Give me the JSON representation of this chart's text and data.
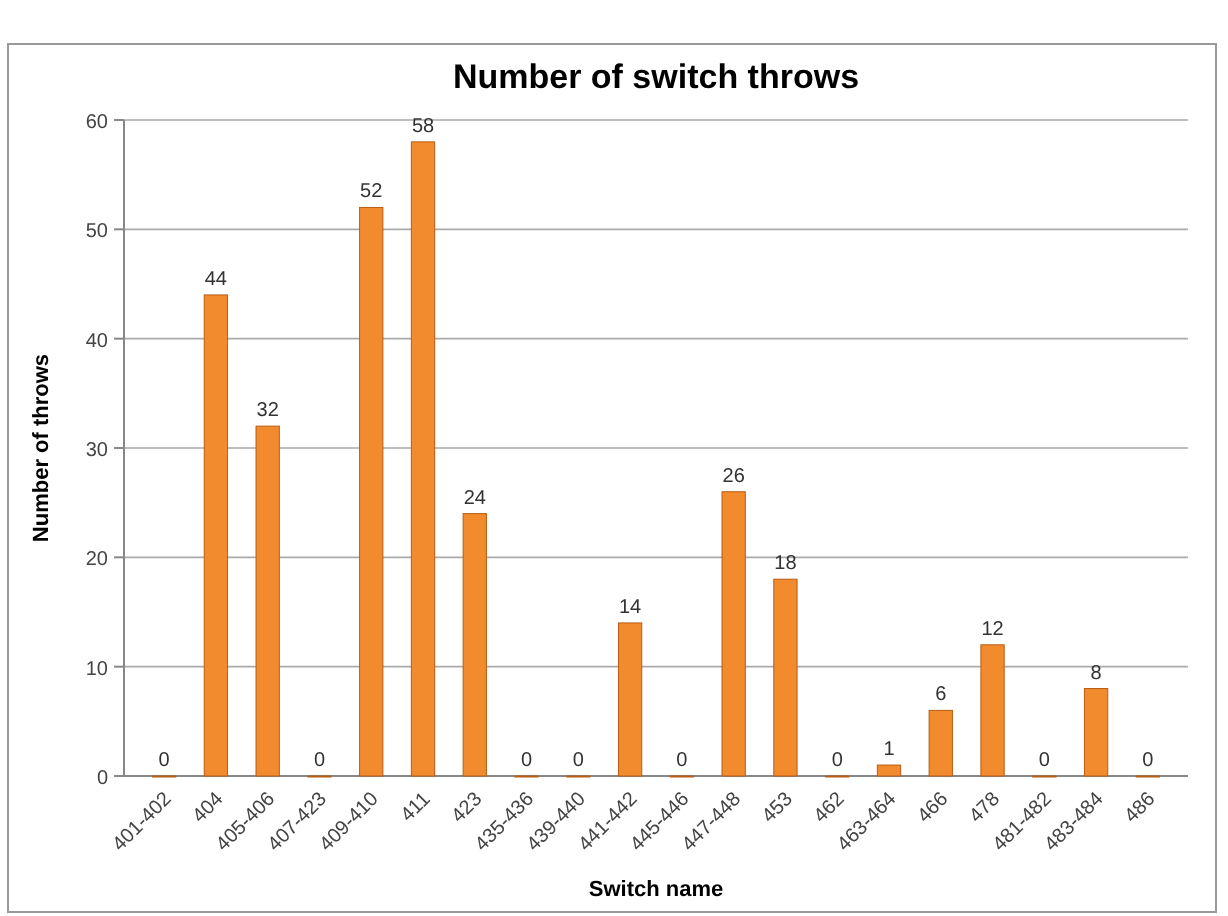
{
  "chart_data": {
    "type": "bar",
    "title": "Number of switch throws",
    "xlabel": "Switch name",
    "ylabel": "Number of throws",
    "categories": [
      "401-402",
      "404",
      "405-406",
      "407-423",
      "409-410",
      "411",
      "423",
      "435-436",
      "439-440",
      "441-442",
      "445-446",
      "447-448",
      "453",
      "462",
      "463-464",
      "466",
      "478",
      "481-482",
      "483-484",
      "486"
    ],
    "values": [
      0,
      44,
      32,
      0,
      52,
      58,
      24,
      0,
      0,
      14,
      0,
      26,
      18,
      0,
      1,
      6,
      12,
      0,
      8,
      0
    ],
    "color": "#f28a2e",
    "ylim": [
      0,
      60
    ],
    "yticks": [
      0,
      10,
      20,
      30,
      40,
      50,
      60
    ],
    "grid": "y",
    "data_labels": true
  }
}
